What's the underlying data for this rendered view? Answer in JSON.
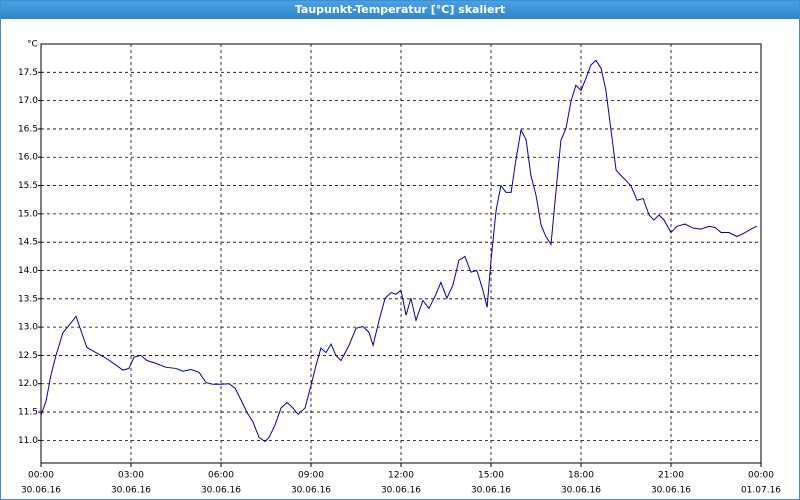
{
  "window_title": "Taupunkt-Temperatur [°C] skaliert",
  "chart_data": {
    "type": "line",
    "y_unit": "°C",
    "color": "#0000aa",
    "grid": true,
    "x": [
      0,
      0.17,
      0.33,
      0.5,
      0.73,
      0.93,
      1.17,
      1.33,
      1.53,
      1.83,
      2.17,
      2.5,
      2.73,
      2.93,
      3.1,
      3.33,
      3.53,
      3.83,
      4.17,
      4.5,
      4.73,
      5.0,
      5.27,
      5.5,
      5.73,
      6.0,
      6.27,
      6.47,
      6.67,
      6.87,
      7.07,
      7.27,
      7.47,
      7.6,
      7.8,
      8.0,
      8.2,
      8.4,
      8.57,
      8.8,
      9.0,
      9.17,
      9.33,
      9.5,
      9.67,
      9.83,
      10.0,
      10.27,
      10.5,
      10.73,
      10.93,
      11.07,
      11.27,
      11.47,
      11.67,
      11.83,
      12.0,
      12.17,
      12.33,
      12.5,
      12.73,
      12.93,
      13.13,
      13.33,
      13.53,
      13.73,
      13.93,
      14.13,
      14.33,
      14.53,
      14.73,
      14.87,
      15.0,
      15.17,
      15.33,
      15.5,
      15.67,
      15.83,
      16.0,
      16.17,
      16.33,
      16.5,
      16.67,
      16.83,
      17.0,
      17.17,
      17.33,
      17.5,
      17.67,
      17.83,
      18.0,
      18.17,
      18.33,
      18.5,
      18.67,
      18.83,
      19.0,
      19.17,
      19.33,
      19.5,
      19.67,
      19.87,
      20.07,
      20.27,
      20.43,
      20.6,
      20.77,
      21.0,
      21.2,
      21.47,
      21.73,
      22.0,
      22.27,
      22.47,
      22.67,
      22.93,
      23.2,
      23.47,
      23.73,
      23.87
    ],
    "values": [
      11.44,
      11.7,
      12.15,
      12.5,
      12.9,
      13.03,
      13.19,
      12.94,
      12.64,
      12.55,
      12.45,
      12.33,
      12.24,
      12.27,
      12.47,
      12.5,
      12.41,
      12.36,
      12.29,
      12.27,
      12.22,
      12.25,
      12.2,
      12.02,
      11.99,
      11.99,
      12.0,
      11.92,
      11.71,
      11.49,
      11.32,
      11.05,
      10.98,
      11.05,
      11.27,
      11.57,
      11.67,
      11.57,
      11.46,
      11.57,
      11.97,
      12.33,
      12.63,
      12.55,
      12.7,
      12.5,
      12.41,
      12.68,
      12.98,
      13.01,
      12.91,
      12.68,
      13.12,
      13.51,
      13.61,
      13.58,
      13.65,
      13.21,
      13.51,
      13.12,
      13.47,
      13.33,
      13.54,
      13.79,
      13.51,
      13.74,
      14.18,
      14.25,
      13.97,
      14.0,
      13.65,
      13.35,
      14.18,
      15.06,
      15.5,
      15.38,
      15.38,
      15.95,
      16.48,
      16.31,
      15.68,
      15.33,
      14.8,
      14.6,
      14.46,
      15.42,
      16.3,
      16.51,
      17.0,
      17.27,
      17.18,
      17.4,
      17.63,
      17.71,
      17.57,
      17.18,
      16.48,
      15.77,
      15.68,
      15.59,
      15.49,
      15.24,
      15.27,
      14.98,
      14.89,
      14.98,
      14.89,
      14.67,
      14.78,
      14.82,
      14.75,
      14.73,
      14.78,
      14.76,
      14.67,
      14.67,
      14.6,
      14.67,
      14.75,
      14.78
    ],
    "xlim": [
      0,
      24
    ],
    "xticks": [
      {
        "value": 0,
        "label": "00:00"
      },
      {
        "value": 3,
        "label": "03:00"
      },
      {
        "value": 6,
        "label": "06:00"
      },
      {
        "value": 9,
        "label": "09:00"
      },
      {
        "value": 12,
        "label": "12:00"
      },
      {
        "value": 15,
        "label": "15:00"
      },
      {
        "value": 18,
        "label": "18:00"
      },
      {
        "value": 21,
        "label": "21:00"
      },
      {
        "value": 24,
        "label": "00:00"
      }
    ],
    "xtick_dates": [
      "30.06.16",
      "30.06.16",
      "30.06.16",
      "30.06.16",
      "30.06.16",
      "30.06.16",
      "30.06.16",
      "30.06.16",
      "01.07.16"
    ],
    "ylim": [
      10.6,
      18.0
    ],
    "yticks": [
      {
        "value": 11,
        "label": "11.0"
      },
      11.5,
      {
        "value": 12,
        "label": "12.0"
      },
      12.5,
      {
        "value": 13,
        "label": "13.0"
      },
      13.5,
      {
        "value": 14,
        "label": "14.0"
      },
      14.5,
      {
        "value": 15,
        "label": "15.0"
      },
      15.5,
      {
        "value": 16,
        "label": "16.0"
      },
      16.5,
      {
        "value": 17,
        "label": "17.0"
      },
      17.5
    ]
  }
}
